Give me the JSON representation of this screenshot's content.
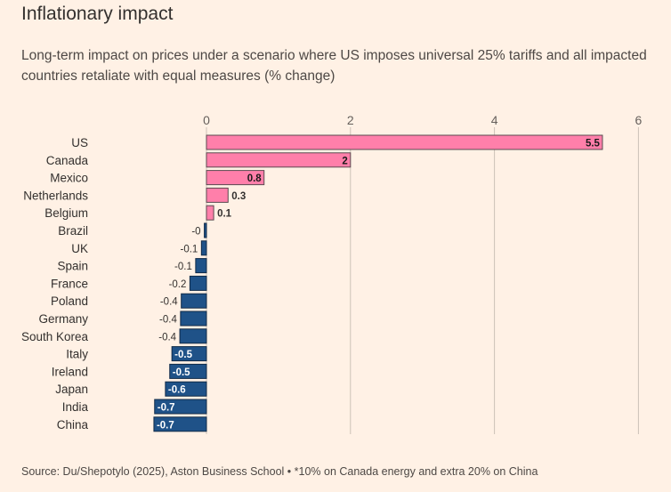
{
  "title": "Inflationary impact",
  "subtitle": "Long-term impact on prices under a scenario where US imposes universal 25% tariffs and all impacted countries retaliate with equal measures (% change)",
  "source": "Source: Du/Shepotylo (2025), Aston Business School • *10% on Canada energy and extra 20% on China",
  "colors": {
    "positive": "#ff7faa",
    "negative": "#1f5288",
    "grid": "#ccc1b7",
    "text": "#33302e"
  },
  "chart_data": {
    "type": "bar",
    "orientation": "horizontal",
    "title": "Inflationary impact",
    "xlabel": "",
    "ylabel": "",
    "xlim": [
      -0.7,
      6
    ],
    "xticks": [
      0,
      2,
      4,
      6
    ],
    "xtick_labels": [
      "0",
      "2",
      "4",
      "6"
    ],
    "categories": [
      "US",
      "Canada",
      "Mexico",
      "Netherlands",
      "Belgium",
      "Brazil",
      "UK",
      "Spain",
      "France",
      "Poland",
      "Germany",
      "South Korea",
      "Italy",
      "Ireland",
      "Japan",
      "India",
      "China"
    ],
    "values": [
      5.5,
      2,
      0.8,
      0.3,
      0.1,
      -0.03,
      -0.07,
      -0.15,
      -0.23,
      -0.35,
      -0.36,
      -0.37,
      -0.48,
      -0.51,
      -0.57,
      -0.72,
      -0.73
    ],
    "labels": [
      "5.5",
      "2",
      "0.8",
      "0.3",
      "0.1",
      "-0",
      "-0.1",
      "-0.1",
      "-0.2",
      "-0.4",
      "-0.4",
      "-0.4",
      "-0.5",
      "-0.5",
      "-0.6",
      "-0.7",
      "-0.7"
    ]
  }
}
